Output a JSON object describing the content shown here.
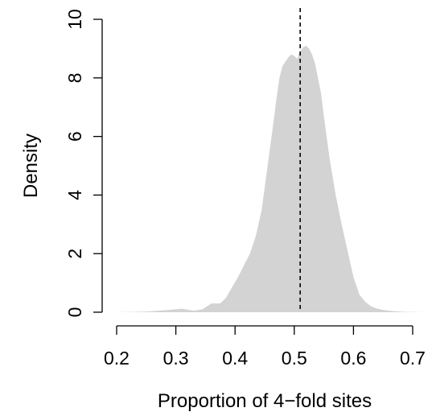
{
  "chart_data": {
    "type": "area",
    "title": "",
    "xlabel": "Proportion of 4−fold sites",
    "ylabel": "Density",
    "xlim": [
      0.2,
      0.7
    ],
    "ylim": [
      0,
      10
    ],
    "x_ticks": [
      "0.2",
      "0.3",
      "0.4",
      "0.5",
      "0.6",
      "0.7"
    ],
    "y_ticks": [
      "0",
      "2",
      "4",
      "6",
      "8",
      "10"
    ],
    "grid": false,
    "legend": "none",
    "fill_color": "#d3d3d3",
    "reference_line": {
      "x": 0.51,
      "style": "dashed",
      "color": "#000000"
    },
    "series": [
      {
        "x": [
          0.16,
          0.2,
          0.25,
          0.27,
          0.29,
          0.31,
          0.33,
          0.345,
          0.36,
          0.375,
          0.385,
          0.395,
          0.405,
          0.415,
          0.425,
          0.435,
          0.445,
          0.455,
          0.465,
          0.47,
          0.475,
          0.48,
          0.485,
          0.49,
          0.495,
          0.5,
          0.505,
          0.51,
          0.515,
          0.52,
          0.525,
          0.53,
          0.535,
          0.54,
          0.545,
          0.55,
          0.56,
          0.57,
          0.58,
          0.59,
          0.6,
          0.61,
          0.62,
          0.63,
          0.64,
          0.65,
          0.66,
          0.67,
          0.69,
          0.72
        ],
        "y": [
          0,
          0,
          0.02,
          0.05,
          0.08,
          0.12,
          0.05,
          0.1,
          0.3,
          0.3,
          0.5,
          0.85,
          1.2,
          1.6,
          2.0,
          2.6,
          3.5,
          5.0,
          6.5,
          7.3,
          8.0,
          8.4,
          8.55,
          8.7,
          8.8,
          8.75,
          8.65,
          8.9,
          9.05,
          9.1,
          9.0,
          8.8,
          8.5,
          8.0,
          7.5,
          6.7,
          5.2,
          4.0,
          3.0,
          2.1,
          1.2,
          0.6,
          0.35,
          0.2,
          0.12,
          0.08,
          0.05,
          0.03,
          0.01,
          0
        ]
      }
    ]
  }
}
